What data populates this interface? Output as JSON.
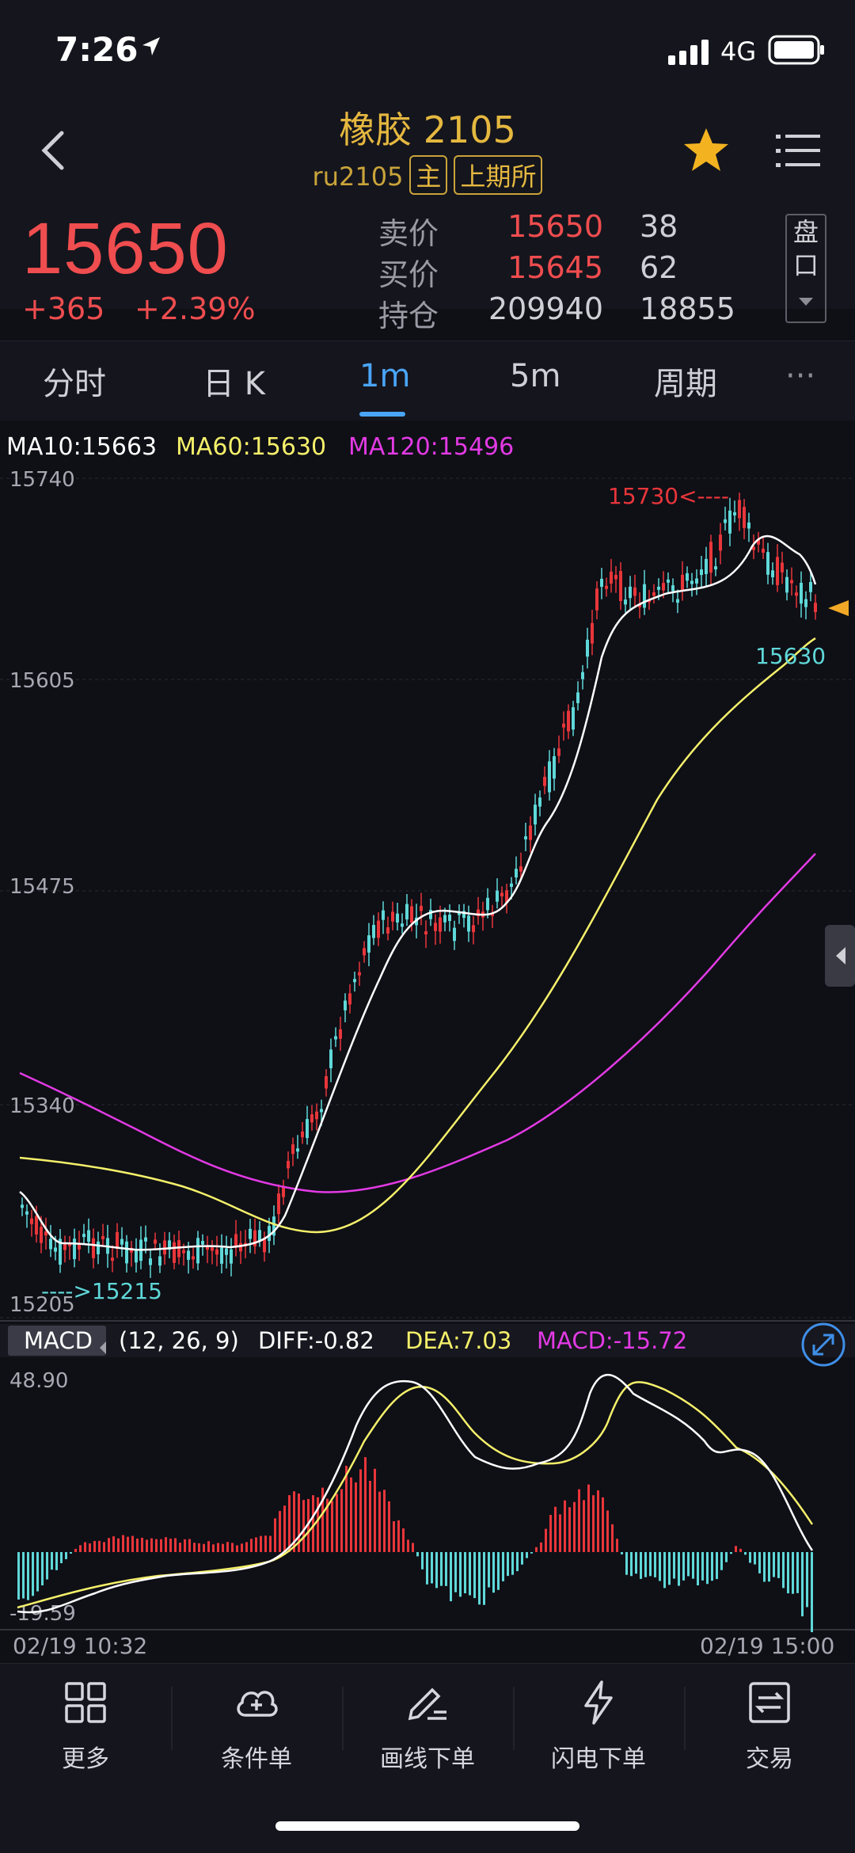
{
  "status_bar": {
    "time": "7:26",
    "network": "4G"
  },
  "header": {
    "title": "橡胶 2105",
    "symbol": "ru2105",
    "tag_main": "主",
    "tag_exchange": "上期所",
    "colors": {
      "gold": "#e5b83f",
      "red": "#ef4d4f"
    }
  },
  "quote": {
    "last_price": "15650",
    "change": "+365",
    "change_pct": "+2.39%",
    "rows": [
      {
        "label": "卖价",
        "price": "15650",
        "volume": "38"
      },
      {
        "label": "买价",
        "price": "15645",
        "volume": "62"
      },
      {
        "label": "持仓",
        "price": "209940",
        "volume": "18855"
      }
    ],
    "pankou_label_1": "盘",
    "pankou_label_2": "口"
  },
  "tabs": [
    {
      "label": "分时"
    },
    {
      "label": "日 K"
    },
    {
      "label": "1m",
      "active": true
    },
    {
      "label": "5m"
    },
    {
      "label": "周期"
    }
  ],
  "tab_more": "···",
  "chart": {
    "ma_legend": {
      "ma10": "MA10:15663",
      "ma60": "MA60:15630",
      "ma120": "MA120:15496"
    },
    "y_labels": [
      "15740",
      "15605",
      "15475",
      "15340",
      "15205"
    ],
    "high_annotation": "15730<----",
    "low_annotation": "---->15215",
    "last_annotation": "15630",
    "macd_badge": "MACD",
    "macd_params": "(12, 26, 9)",
    "macd_diff": "DIFF:-0.82",
    "macd_dea": "DEA:7.03",
    "macd_value": "MACD:-15.72",
    "macd_y_top": "48.90",
    "macd_y_bottom": "-19.59",
    "time_start": "02/19 10:32",
    "time_end": "02/19 15:00",
    "colors": {
      "up": "#e8363a",
      "down": "#5fd8d8",
      "ma10": "#ffffff",
      "ma60": "#f4f06a",
      "ma120": "#e23ae4"
    }
  },
  "chart_data": {
    "type": "line",
    "title": "",
    "ylim": [
      15205,
      15740
    ],
    "series": [
      {
        "name": "MA10",
        "last": 15663
      },
      {
        "name": "MA60",
        "last": 15630
      },
      {
        "name": "MA120",
        "last": 15496
      }
    ],
    "high": 15730,
    "low": 15215,
    "macd": {
      "diff": -0.82,
      "dea": 7.03,
      "macd": -15.72,
      "ylim": [
        -19.59,
        48.9
      ]
    },
    "x_range": [
      "02/19 10:32",
      "02/19 15:00"
    ]
  },
  "bottom_nav": [
    {
      "label": "更多",
      "icon": "grid-icon"
    },
    {
      "label": "条件单",
      "icon": "cloud-plus-icon"
    },
    {
      "label": "画线下单",
      "icon": "pen-line-icon"
    },
    {
      "label": "闪电下单",
      "icon": "lightning-icon"
    },
    {
      "label": "交易",
      "icon": "trade-icon"
    }
  ]
}
